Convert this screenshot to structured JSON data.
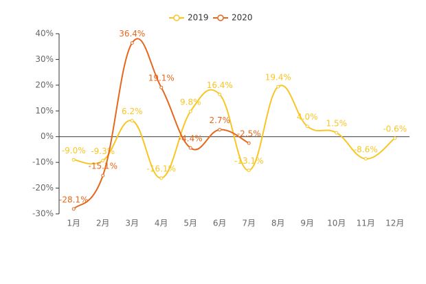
{
  "chart_data": {
    "type": "line",
    "categories": [
      "1月",
      "2月",
      "3月",
      "4月",
      "5月",
      "6月",
      "7月",
      "8月",
      "9月",
      "10月",
      "11月",
      "12月"
    ],
    "series": [
      {
        "name": "2019",
        "color": "#f9c523",
        "values": [
          -9.0,
          -9.3,
          6.2,
          -16.1,
          9.8,
          16.4,
          -13.1,
          19.4,
          4.0,
          1.5,
          -8.6,
          -0.6
        ],
        "value_labels": [
          "-9.0%",
          "-9.3%",
          "6.2%",
          "-16.1%",
          "9.8%",
          "16.4%",
          "-13.1%",
          "19.4%",
          "4.0%",
          "1.5%",
          "-8.6%",
          "-0.6%"
        ]
      },
      {
        "name": "2020",
        "color": "#e5671b",
        "values": [
          -28.1,
          -15.1,
          36.4,
          19.1,
          -4.4,
          2.7,
          -2.5,
          null,
          null,
          null,
          null,
          null
        ],
        "value_labels": [
          "-28.1%",
          "-15.1%",
          "36.4%",
          "19.1%",
          "-4.4%",
          "2.7%",
          "-2.5%",
          null,
          null,
          null,
          null,
          null
        ]
      }
    ],
    "ylim": [
      -30,
      40
    ],
    "yticks": [
      {
        "value": -30,
        "label": "-30%"
      },
      {
        "value": -20,
        "label": "-20%"
      },
      {
        "value": -10,
        "label": "-10%"
      },
      {
        "value": 0,
        "label": "0%"
      },
      {
        "value": 10,
        "label": "10%"
      },
      {
        "value": 20,
        "label": "20%"
      },
      {
        "value": 30,
        "label": "30%"
      },
      {
        "value": 40,
        "label": "40%"
      }
    ],
    "grid": false,
    "legend": "top"
  }
}
